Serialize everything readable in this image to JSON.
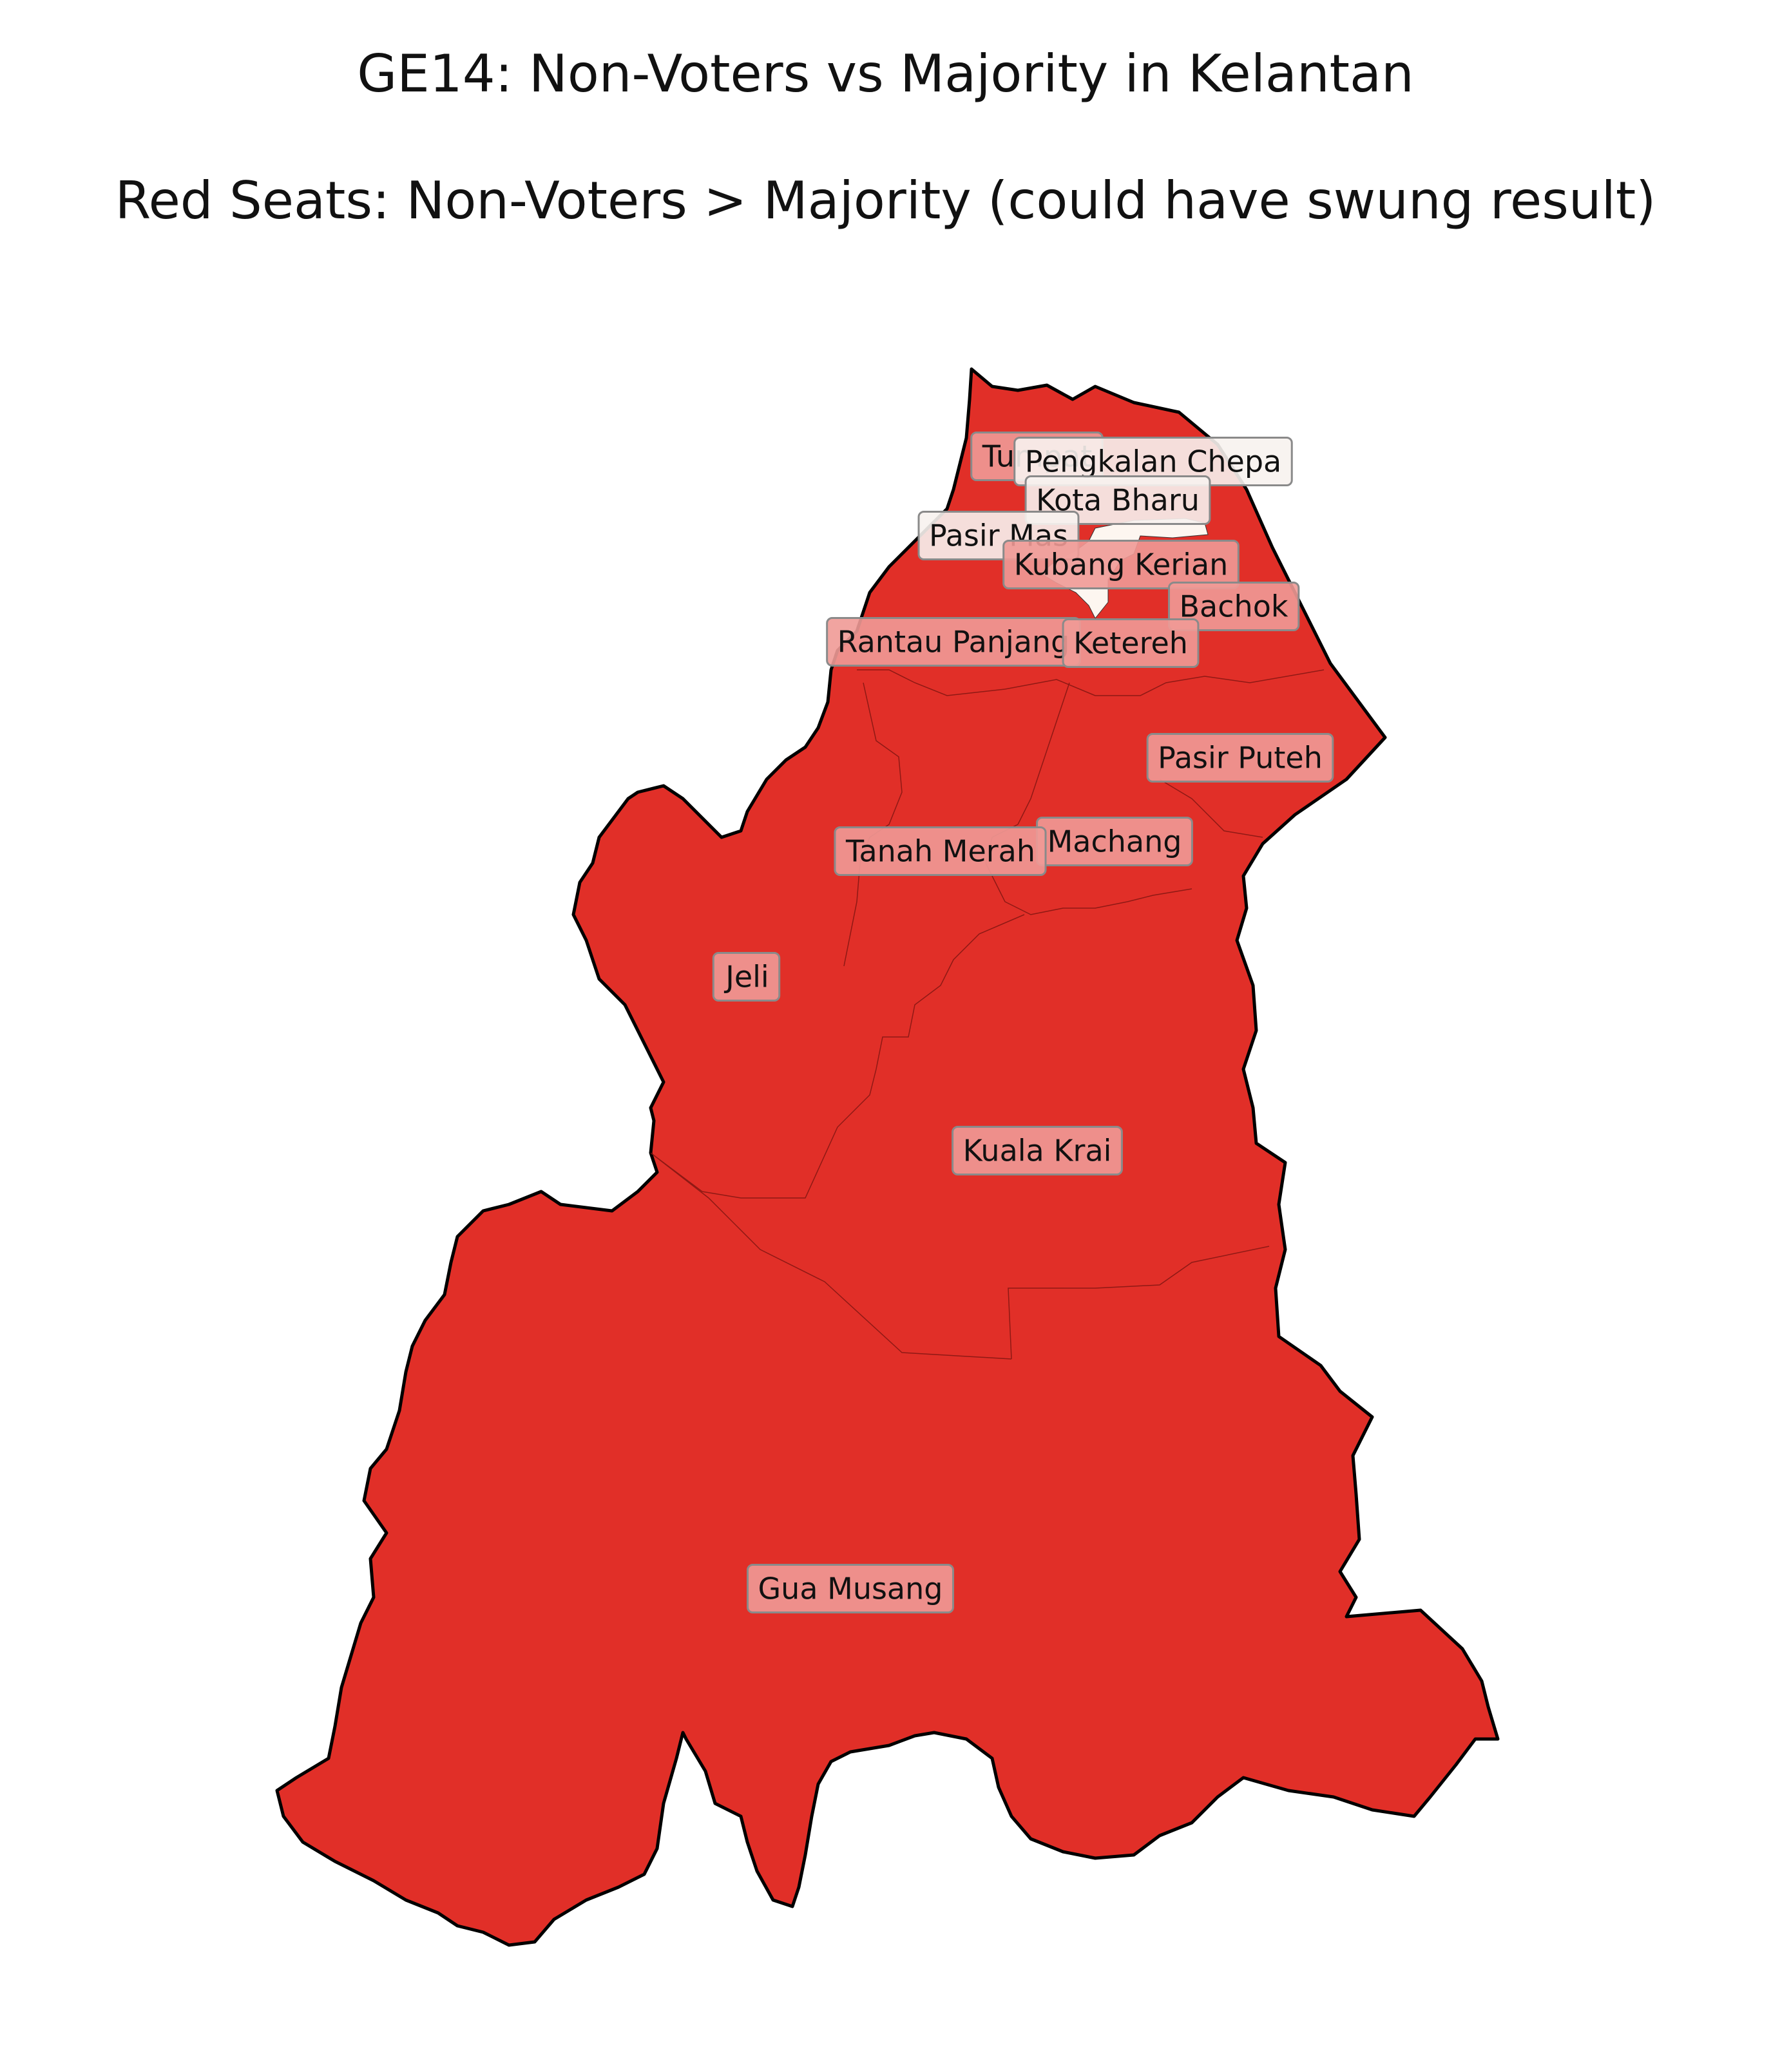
{
  "title": "GE14: Non-Voters vs Majority in Kelantan",
  "subtitle": "Red Seats: Non-Voters > Majority (could have swung result)",
  "colors": {
    "swing_seat": "#e12f28",
    "safe_seat": "#fdf6f0",
    "border": "#000000",
    "label_box_swing": "#f09a96",
    "label_box_safe": "#f7f2ee"
  },
  "seats": [
    {
      "name": "Tumpat",
      "swing": true
    },
    {
      "name": "Pengkalan Chepa",
      "swing": false
    },
    {
      "name": "Kota Bharu",
      "swing": false
    },
    {
      "name": "Pasir Mas",
      "swing": false
    },
    {
      "name": "Kubang Kerian",
      "swing": true
    },
    {
      "name": "Bachok",
      "swing": true
    },
    {
      "name": "Rantau Panjang",
      "swing": true
    },
    {
      "name": "Ketereh",
      "swing": true
    },
    {
      "name": "Pasir Puteh",
      "swing": true
    },
    {
      "name": "Machang",
      "swing": true
    },
    {
      "name": "Tanah Merah",
      "swing": true
    },
    {
      "name": "Jeli",
      "swing": true
    },
    {
      "name": "Kuala Krai",
      "swing": true
    },
    {
      "name": "Gua Musang",
      "swing": true
    }
  ]
}
